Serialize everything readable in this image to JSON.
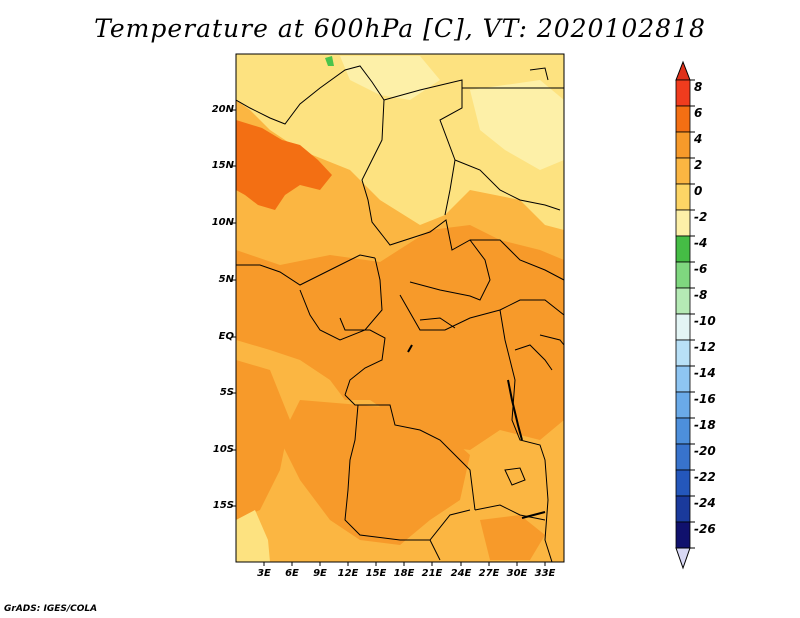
{
  "title": "Temperature at 600hPa [C], VT: 2020102818",
  "credit": "GrADS: IGES/COLA",
  "map": {
    "lat_labels": [
      "20N",
      "15N",
      "10N",
      "5N",
      "EQ",
      "5S",
      "10S",
      "15S"
    ],
    "lon_labels": [
      "3E",
      "6E",
      "9E",
      "12E",
      "15E",
      "18E",
      "21E",
      "24E",
      "27E",
      "30E",
      "33E"
    ],
    "background_color": "#fbb642",
    "region_colors": {
      "warm_orange": "#f79a2a",
      "hot_orange": "#f36f13",
      "light_yellow": "#fde280",
      "pale_yellow": "#fdf0a8",
      "green": "#4bc44b"
    }
  },
  "colorbar": {
    "labels": [
      "8",
      "6",
      "4",
      "2",
      "0",
      "-2",
      "-4",
      "-6",
      "-8",
      "-10",
      "-12",
      "-14",
      "-16",
      "-18",
      "-20",
      "-22",
      "-24",
      "-26"
    ],
    "colors": [
      "#f03c1e",
      "#f36f13",
      "#f79a2a",
      "#fbb642",
      "#fdd565",
      "#fdf0a8",
      "#45bd45",
      "#7fd77f",
      "#b5eab5",
      "#e3f5f5",
      "#b8e0f7",
      "#8ec5f2",
      "#6aaae8",
      "#4d8fdb",
      "#3873cc",
      "#2457bb",
      "#1a3a9c",
      "#10116d"
    ],
    "under_color": "#d9d9f5",
    "over_color": "#e0311a"
  }
}
